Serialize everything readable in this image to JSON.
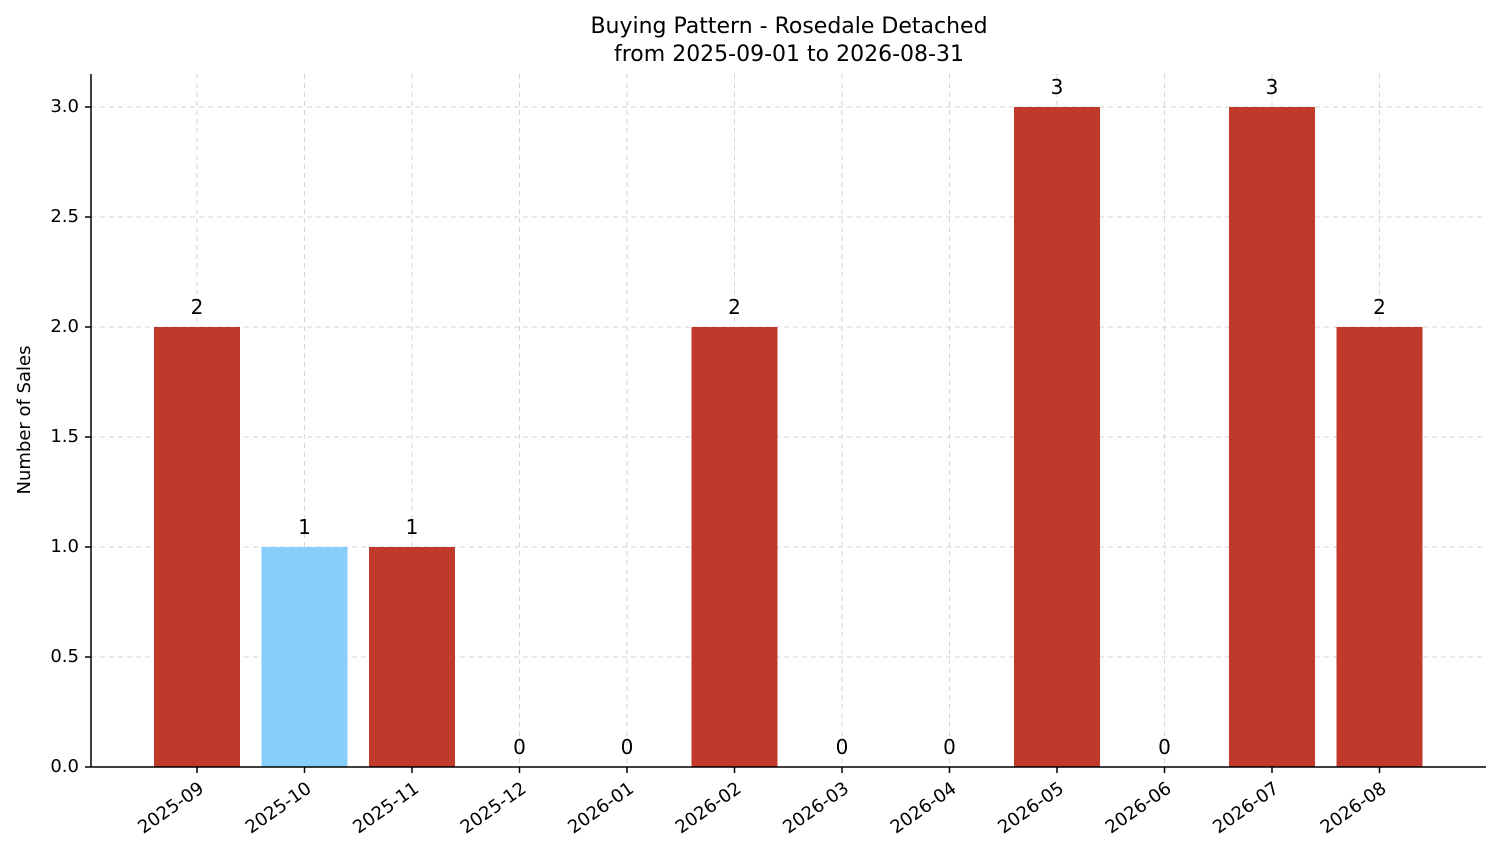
{
  "chart_data": {
    "type": "bar",
    "title": "Buying Pattern - Rosedale Detached",
    "subtitle": "from 2025-09-01 to 2026-08-31",
    "xlabel": "",
    "ylabel": "Number of Sales",
    "categories": [
      "2025-09",
      "2025-10",
      "2025-11",
      "2025-12",
      "2026-01",
      "2026-02",
      "2026-03",
      "2026-04",
      "2026-05",
      "2026-06",
      "2026-07",
      "2026-08"
    ],
    "values": [
      2,
      1,
      1,
      0,
      0,
      2,
      0,
      0,
      3,
      0,
      3,
      2
    ],
    "highlight_index": 1,
    "ylim": [
      0,
      3.15
    ],
    "yticks": [
      "0.0",
      "0.5",
      "1.0",
      "1.5",
      "2.0",
      "2.5",
      "3.0"
    ],
    "ytick_values": [
      0,
      0.5,
      1,
      1.5,
      2,
      2.5,
      3
    ],
    "grid": true,
    "colors": {
      "bar": "#c0392b",
      "highlight": "#87cefa"
    }
  }
}
